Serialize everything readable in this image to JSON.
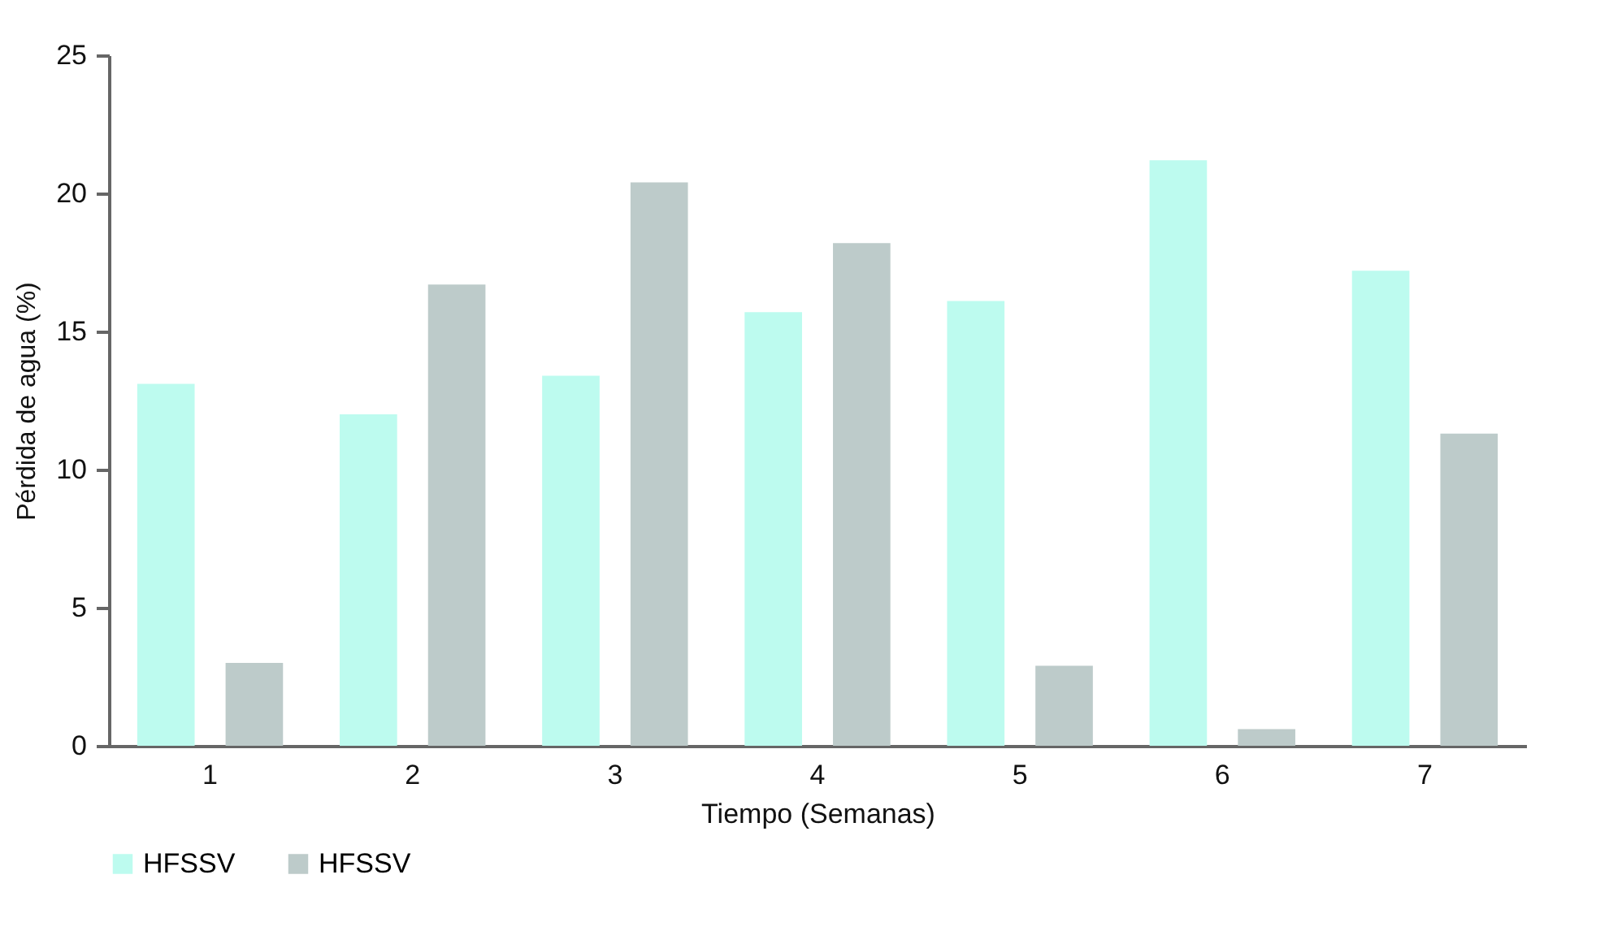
{
  "chart_data": {
    "type": "bar",
    "xlabel": "Tiempo (Semanas)",
    "ylabel": "Pérdida de agua (%)",
    "categories": [
      "1",
      "2",
      "3",
      "4",
      "5",
      "6",
      "7"
    ],
    "series": [
      {
        "name": "HFSSV",
        "color": "#bdfbef",
        "values": [
          13.1,
          12.0,
          13.4,
          15.7,
          16.1,
          21.2,
          17.2
        ]
      },
      {
        "name": "HFSSV",
        "color": "#bdcbca",
        "values": [
          3.0,
          16.7,
          20.4,
          18.2,
          2.9,
          0.6,
          11.3
        ]
      }
    ],
    "ylim": [
      0,
      25
    ],
    "yticks": [
      0,
      5,
      10,
      15,
      20,
      25
    ],
    "grid": false,
    "legend": "bottom"
  }
}
